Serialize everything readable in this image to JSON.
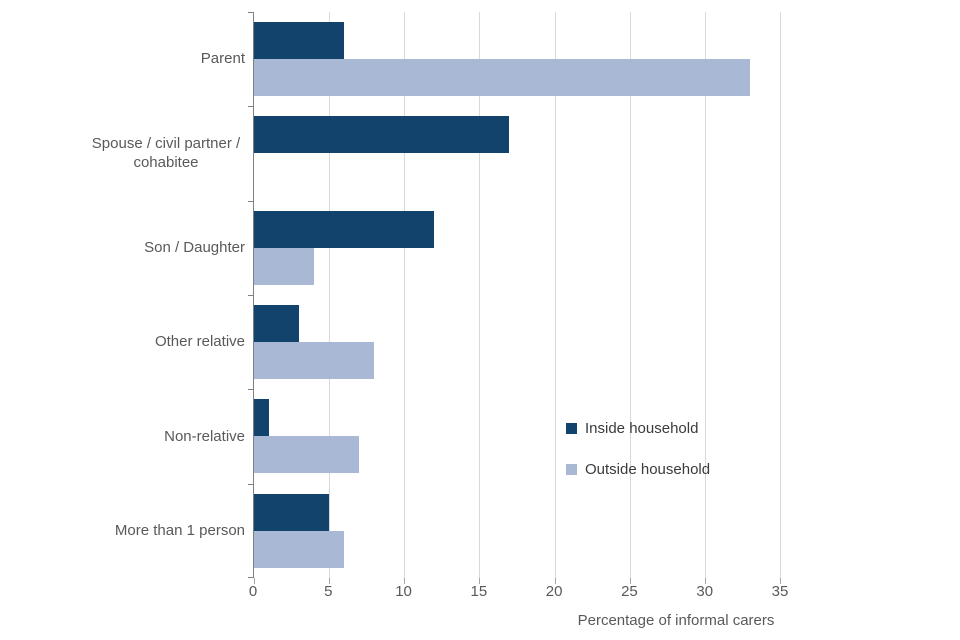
{
  "chart_data": {
    "type": "bar",
    "orientation": "horizontal",
    "title": "",
    "xlabel": "Percentage of informal carers",
    "ylabel": "",
    "xlim": [
      0,
      35
    ],
    "xticks": [
      0,
      5,
      10,
      15,
      20,
      25,
      30,
      35
    ],
    "grid": true,
    "legend_position": "inside-right",
    "categories": [
      "Parent",
      "Spouse / civil partner / cohabitee",
      "Son / Daughter",
      "Other relative",
      "Non-relative",
      "More than 1 person"
    ],
    "series": [
      {
        "name": "Inside household",
        "color": "#12436D",
        "values": [
          6,
          17,
          12,
          3,
          1,
          5
        ]
      },
      {
        "name": "Outside household",
        "color": "#A9B8D4",
        "values": [
          33,
          0,
          4,
          8,
          7,
          6
        ]
      }
    ]
  },
  "colors": {
    "inside_household": "#12436D",
    "outside_household": "#A9B8D4",
    "gridline": "#d9d9d9",
    "axis_line": "#808080",
    "axis_text": "#595959"
  }
}
